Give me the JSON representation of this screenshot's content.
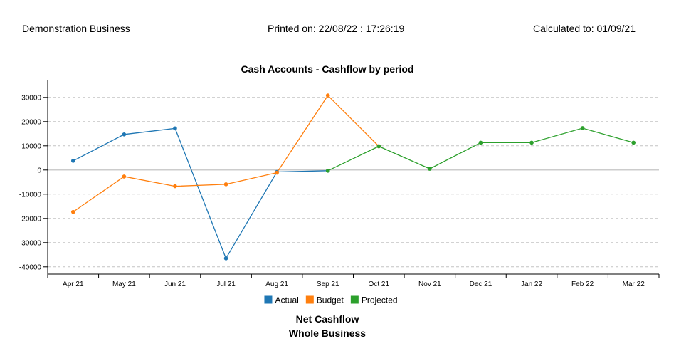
{
  "header": {
    "business": "Demonstration Business",
    "printed": "Printed on: 22/08/22 : 17:26:19",
    "calculated": "Calculated to: 01/09/21"
  },
  "footer": {
    "line1": "Net Cashflow",
    "line2": "Whole Business"
  },
  "chart_data": {
    "type": "line",
    "title": "Cash Accounts - Cashflow by period",
    "xlabel": "",
    "ylabel": "",
    "categories": [
      "Apr 21",
      "May 21",
      "Jun 21",
      "Jul 21",
      "Aug 21",
      "Sep 21",
      "Oct 21",
      "Nov 21",
      "Dec 21",
      "Jan 22",
      "Feb 22",
      "Mar 22"
    ],
    "ylim": [
      -43000,
      37000
    ],
    "yticks": [
      -40000,
      -30000,
      -20000,
      -10000,
      0,
      10000,
      20000,
      30000
    ],
    "grid": true,
    "legend_position": "bottom",
    "series": [
      {
        "name": "Actual",
        "color": "#1f77b4",
        "values": [
          3800,
          14700,
          17200,
          -36500,
          -800,
          -300,
          null,
          null,
          null,
          null,
          null,
          null
        ]
      },
      {
        "name": "Budget",
        "color": "#ff7f0e",
        "values": [
          -17300,
          -2700,
          -6700,
          -5900,
          -1100,
          30800,
          9800,
          null,
          null,
          null,
          null,
          null
        ]
      },
      {
        "name": "Projected",
        "color": "#2ca02c",
        "values": [
          null,
          null,
          null,
          null,
          null,
          -300,
          9800,
          500,
          11300,
          11300,
          17300,
          11300
        ]
      }
    ]
  }
}
